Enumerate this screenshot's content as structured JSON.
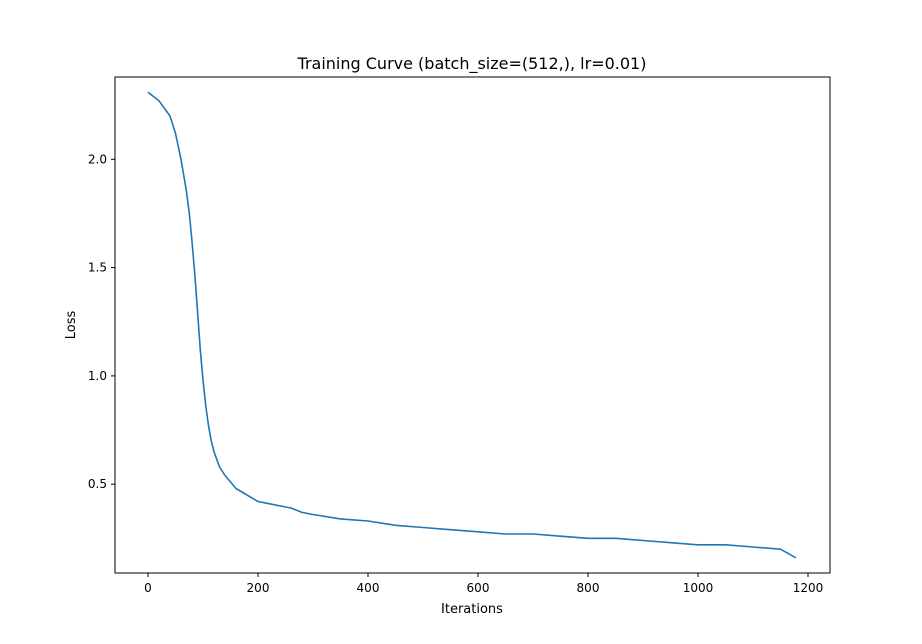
{
  "chart_data": {
    "type": "line",
    "title": "Training Curve (batch_size=(512,), lr=0.01)",
    "xlabel": "Iterations",
    "ylabel": "Loss",
    "xlim": [
      -60,
      1240
    ],
    "ylim": [
      0.09,
      2.38
    ],
    "xticks": [
      0,
      200,
      400,
      600,
      800,
      1000,
      1200
    ],
    "yticks": [
      0.5,
      1.0,
      1.5,
      2.0
    ],
    "grid": false,
    "legend": null,
    "color": "#1f77b4",
    "series": [
      {
        "x": [
          0,
          20,
          40,
          50,
          60,
          70,
          75,
          80,
          85,
          90,
          95,
          100,
          105,
          110,
          115,
          120,
          130,
          140,
          150,
          160,
          180,
          200,
          220,
          240,
          260,
          280,
          300,
          350,
          400,
          450,
          500,
          550,
          600,
          650,
          700,
          750,
          800,
          850,
          900,
          950,
          1000,
          1050,
          1100,
          1150,
          1178
        ],
        "y": [
          2.31,
          2.27,
          2.2,
          2.12,
          2.0,
          1.85,
          1.75,
          1.62,
          1.47,
          1.3,
          1.12,
          0.98,
          0.86,
          0.77,
          0.7,
          0.65,
          0.58,
          0.54,
          0.51,
          0.48,
          0.45,
          0.42,
          0.41,
          0.4,
          0.39,
          0.37,
          0.36,
          0.34,
          0.33,
          0.31,
          0.3,
          0.29,
          0.28,
          0.27,
          0.27,
          0.26,
          0.25,
          0.25,
          0.24,
          0.23,
          0.22,
          0.22,
          0.21,
          0.2,
          0.16
        ]
      }
    ]
  }
}
